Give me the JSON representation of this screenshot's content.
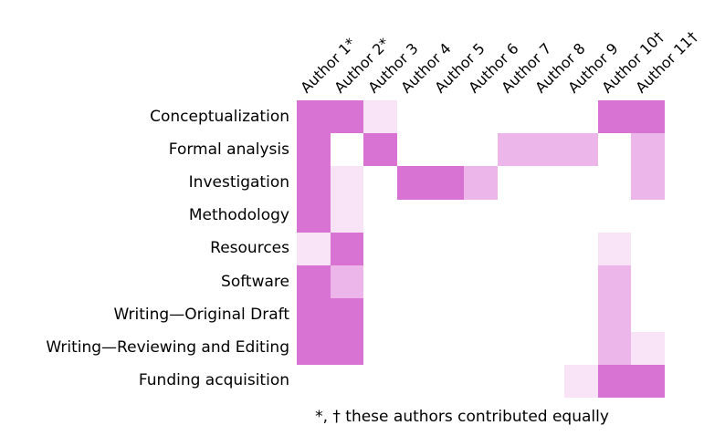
{
  "chart_data": {
    "type": "heatmap",
    "columns": [
      "Author 1*",
      "Author 2*",
      "Author 3",
      "Author 4",
      "Author 5",
      "Author 6",
      "Author 7",
      "Author 8",
      "Author 9",
      "Author 10†",
      "Author 11†"
    ],
    "rows": [
      "Conceptualization",
      "Formal analysis",
      "Investigation",
      "Methodology",
      "Resources",
      "Software",
      "Writing—Original Draft",
      "Writing—Reviewing and Editing",
      "Funding acquisition"
    ],
    "values": [
      [
        3,
        3,
        1,
        0,
        0,
        0,
        0,
        0,
        0,
        3,
        3
      ],
      [
        3,
        0,
        3,
        0,
        0,
        0,
        2,
        2,
        2,
        0,
        2
      ],
      [
        3,
        1,
        0,
        3,
        3,
        2,
        0,
        0,
        0,
        0,
        2
      ],
      [
        3,
        1,
        0,
        0,
        0,
        0,
        0,
        0,
        0,
        0,
        0
      ],
      [
        1,
        3,
        0,
        0,
        0,
        0,
        0,
        0,
        0,
        1,
        0
      ],
      [
        3,
        2,
        0,
        0,
        0,
        0,
        0,
        0,
        0,
        2,
        0
      ],
      [
        3,
        3,
        0,
        0,
        0,
        0,
        0,
        0,
        0,
        2,
        0
      ],
      [
        3,
        3,
        0,
        0,
        0,
        0,
        0,
        0,
        0,
        2,
        1
      ],
      [
        0,
        0,
        0,
        0,
        0,
        0,
        0,
        0,
        1,
        3,
        3
      ]
    ],
    "value_colors": {
      "0": "#ffffff",
      "1": "#f9e3f7",
      "2": "#edb6ea",
      "3": "#d873d3"
    },
    "footnote": "*, † these authors contributed equally",
    "layout": {
      "grid_lines": "off",
      "column_label_rotation_deg": -45
    }
  }
}
